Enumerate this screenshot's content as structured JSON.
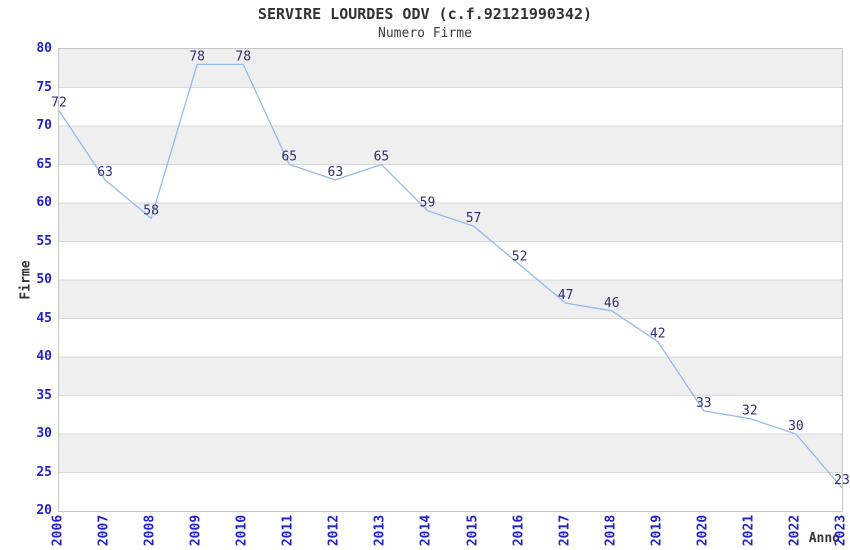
{
  "title": "SERVIRE LOURDES ODV (c.f.92121990342)",
  "subtitle": "Numero Firme",
  "chart_data": {
    "type": "line",
    "title": "SERVIRE LOURDES ODV (c.f.92121990342)",
    "subtitle": "Numero Firme",
    "xlabel": "Anno",
    "ylabel": "Firme",
    "categories": [
      "2006",
      "2007",
      "2008",
      "2009",
      "2010",
      "2011",
      "2012",
      "2013",
      "2014",
      "2015",
      "2016",
      "2017",
      "2018",
      "2019",
      "2020",
      "2021",
      "2022",
      "2023"
    ],
    "values": [
      72,
      63,
      58,
      78,
      78,
      65,
      63,
      65,
      59,
      57,
      52,
      47,
      46,
      42,
      33,
      32,
      30,
      23
    ],
    "ylim": [
      20,
      80
    ],
    "ytick_step": 5,
    "grid": true,
    "legend": "none",
    "data_labels_shown": true,
    "colors": {
      "line": "#92bcec",
      "tick_label": "#2222cc",
      "data_label": "#2e2e7a",
      "band": "#efefef",
      "gridline": "#d9d9d9",
      "plot_border": "#c6c6c6",
      "title_text": "#333333"
    }
  }
}
